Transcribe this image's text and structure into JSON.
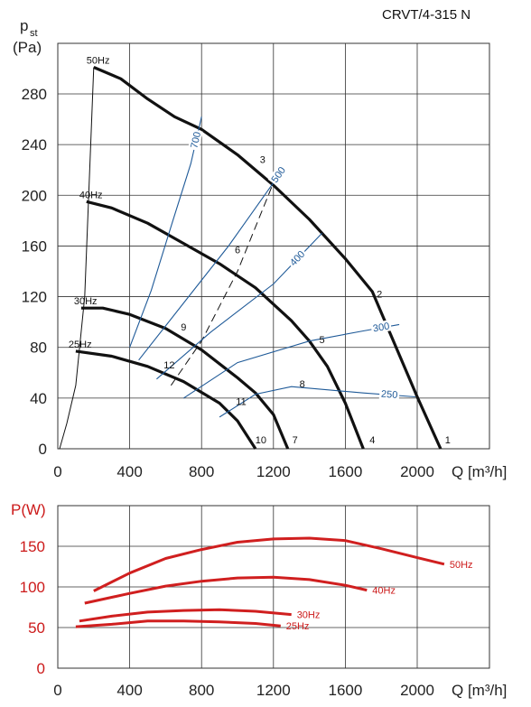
{
  "title": "CRVT/4-315 N",
  "colors": {
    "curve": "#111111",
    "blue": "#1f5a98",
    "red": "#d01f1f",
    "grid": "#333333"
  },
  "chart_data": [
    {
      "type": "line",
      "ylabel_main": "p",
      "ylabel_sub": "st",
      "ylabel_unit": "(Pa)",
      "xlabel": "Q [m³/h]",
      "xlim": [
        0,
        2400
      ],
      "ylim": [
        0,
        300
      ],
      "xticks": [
        0,
        400,
        800,
        1200,
        1600,
        2000
      ],
      "yticks": [
        0,
        40,
        80,
        120,
        160,
        200,
        240,
        280
      ],
      "series": [
        {
          "name": "50Hz",
          "points": [
            [
              200,
              301
            ],
            [
              350,
              292
            ],
            [
              500,
              276
            ],
            [
              650,
              262
            ],
            [
              800,
              252
            ],
            [
              1000,
              232
            ],
            [
              1200,
              208
            ],
            [
              1400,
              181
            ],
            [
              1600,
              150
            ],
            [
              1750,
              124
            ],
            [
              2000,
              41
            ],
            [
              2130,
              0
            ]
          ]
        },
        {
          "name": "40Hz",
          "points": [
            [
              160,
              195
            ],
            [
              300,
              190
            ],
            [
              500,
              178
            ],
            [
              700,
              162
            ],
            [
              900,
              146
            ],
            [
              1100,
              127
            ],
            [
              1300,
              101
            ],
            [
              1400,
              85
            ],
            [
              1500,
              65
            ],
            [
              1600,
              36
            ],
            [
              1700,
              0
            ]
          ]
        },
        {
          "name": "30Hz",
          "points": [
            [
              130,
              111
            ],
            [
              250,
              111
            ],
            [
              400,
              106
            ],
            [
              600,
              95
            ],
            [
              800,
              78
            ],
            [
              1000,
              56
            ],
            [
              1100,
              44
            ],
            [
              1200,
              27
            ],
            [
              1280,
              0
            ]
          ]
        },
        {
          "name": "25Hz",
          "points": [
            [
              100,
              77
            ],
            [
              300,
              73
            ],
            [
              500,
              65
            ],
            [
              700,
              53
            ],
            [
              900,
              36
            ],
            [
              1000,
              22
            ],
            [
              1100,
              0
            ]
          ]
        }
      ],
      "system_curves": [
        {
          "name": "700",
          "points": [
            [
              400,
              80
            ],
            [
              520,
              125
            ],
            [
              640,
              180
            ],
            [
              740,
              225
            ],
            [
              800,
              262
            ]
          ]
        },
        {
          "name": "500",
          "points": [
            [
              450,
              70
            ],
            [
              700,
              115
            ],
            [
              950,
              160
            ],
            [
              1200,
              210
            ],
            [
              1260,
              222
            ]
          ]
        },
        {
          "name": "400",
          "points": [
            [
              550,
              55
            ],
            [
              850,
              92
            ],
            [
              1200,
              130
            ],
            [
              1470,
              170
            ]
          ]
        },
        {
          "name": "300",
          "points": [
            [
              700,
              40
            ],
            [
              1000,
              68
            ],
            [
              1400,
              85
            ],
            [
              1700,
              93
            ],
            [
              1900,
              98
            ]
          ]
        },
        {
          "name": "250",
          "points": [
            [
              900,
              25
            ],
            [
              1100,
              43
            ],
            [
              1300,
              49
            ],
            [
              1700,
              44
            ],
            [
              1990,
              41
            ]
          ]
        }
      ],
      "zero_curve": [
        [
          10,
          0
        ],
        [
          50,
          20
        ],
        [
          100,
          50
        ],
        [
          150,
          120
        ],
        [
          200,
          301
        ]
      ],
      "dashed_line": [
        [
          630,
          50
        ],
        [
          800,
          85
        ],
        [
          1000,
          140
        ],
        [
          1200,
          210
        ]
      ],
      "point_labels": [
        {
          "text": "1",
          "x": 2170,
          "y": 3
        },
        {
          "text": "2",
          "x": 1790,
          "y": 118
        },
        {
          "text": "3",
          "x": 1140,
          "y": 224
        },
        {
          "text": "4",
          "x": 1750,
          "y": 3
        },
        {
          "text": "5",
          "x": 1470,
          "y": 82
        },
        {
          "text": "6",
          "x": 1000,
          "y": 153
        },
        {
          "text": "7",
          "x": 1320,
          "y": 3
        },
        {
          "text": "8",
          "x": 1360,
          "y": 47
        },
        {
          "text": "9",
          "x": 700,
          "y": 92
        },
        {
          "text": "10",
          "x": 1130,
          "y": 3
        },
        {
          "text": "11",
          "x": 1020,
          "y": 33
        },
        {
          "text": "12",
          "x": 620,
          "y": 62
        }
      ]
    },
    {
      "type": "line",
      "ylabel": "P(W)",
      "xlabel": "Q [m³/h]",
      "xlim": [
        0,
        2400
      ],
      "ylim": [
        0,
        175
      ],
      "xticks": [
        0,
        400,
        800,
        1200,
        1600,
        2000
      ],
      "yticks": [
        0,
        50,
        100,
        150
      ],
      "series": [
        {
          "name": "50Hz",
          "points": [
            [
              200,
              95
            ],
            [
              400,
              117
            ],
            [
              600,
              135
            ],
            [
              800,
              146
            ],
            [
              1000,
              155
            ],
            [
              1200,
              159
            ],
            [
              1400,
              160
            ],
            [
              1600,
              157
            ],
            [
              1800,
              147
            ],
            [
              2000,
              136
            ],
            [
              2150,
              128
            ]
          ]
        },
        {
          "name": "40Hz",
          "points": [
            [
              150,
              80
            ],
            [
              400,
              92
            ],
            [
              600,
              101
            ],
            [
              800,
              107
            ],
            [
              1000,
              111
            ],
            [
              1200,
              112
            ],
            [
              1400,
              109
            ],
            [
              1600,
              102
            ],
            [
              1720,
              96
            ]
          ]
        },
        {
          "name": "30Hz",
          "points": [
            [
              120,
              58
            ],
            [
              300,
              64
            ],
            [
              500,
              69
            ],
            [
              700,
              71
            ],
            [
              900,
              72
            ],
            [
              1100,
              70
            ],
            [
              1300,
              66
            ]
          ]
        },
        {
          "name": "25Hz",
          "points": [
            [
              100,
              51
            ],
            [
              300,
              54
            ],
            [
              500,
              58
            ],
            [
              700,
              58
            ],
            [
              900,
              57
            ],
            [
              1100,
              55
            ],
            [
              1240,
              52
            ]
          ]
        }
      ]
    }
  ]
}
